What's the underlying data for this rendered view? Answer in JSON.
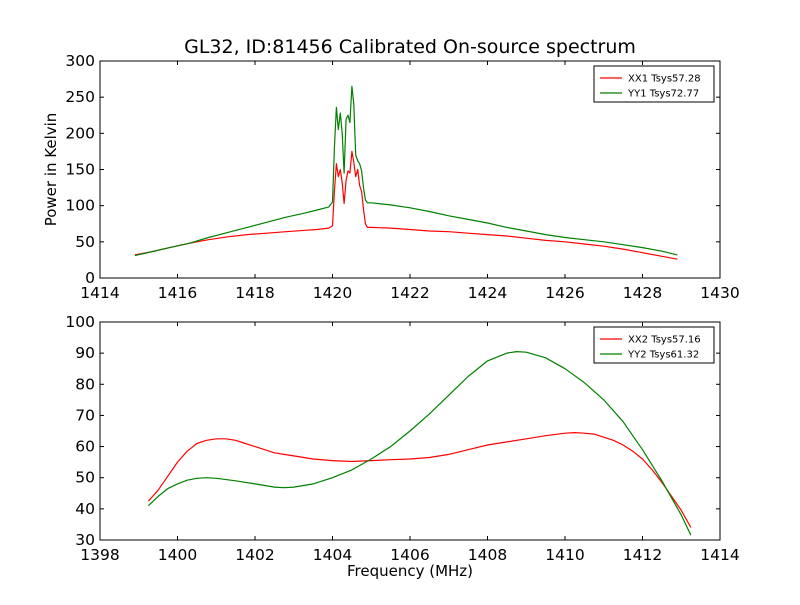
{
  "figure": {
    "title": "GL32, ID:81456 Calibrated On-source spectrum"
  },
  "chart_data": [
    {
      "type": "line",
      "title": "GL32, ID:81456 Calibrated On-source spectrum",
      "xlabel": "",
      "ylabel": "Power in Kelvin",
      "xlim": [
        1414,
        1430
      ],
      "ylim": [
        0,
        300
      ],
      "xticks": [
        "1414",
        "1416",
        "1418",
        "1420",
        "1422",
        "1424",
        "1426",
        "1428",
        "1430"
      ],
      "yticks": [
        "0",
        "50",
        "100",
        "150",
        "200",
        "250",
        "300"
      ],
      "legend_position": "top-right",
      "grid": false,
      "series": [
        {
          "name": "XX1 Tsys57.28",
          "color": "#ff0000",
          "points": [
            [
              1414.9,
              32
            ],
            [
              1415.3,
              36
            ],
            [
              1415.8,
              42
            ],
            [
              1416.3,
              48
            ],
            [
              1416.8,
              53
            ],
            [
              1417.3,
              57
            ],
            [
              1417.8,
              60
            ],
            [
              1418.3,
              62
            ],
            [
              1418.8,
              64
            ],
            [
              1419.3,
              66
            ],
            [
              1419.6,
              67
            ],
            [
              1419.9,
              69
            ],
            [
              1420.0,
              72
            ],
            [
              1420.05,
              120
            ],
            [
              1420.1,
              158
            ],
            [
              1420.15,
              140
            ],
            [
              1420.2,
              150
            ],
            [
              1420.25,
              132
            ],
            [
              1420.3,
              103
            ],
            [
              1420.35,
              135
            ],
            [
              1420.4,
              148
            ],
            [
              1420.45,
              145
            ],
            [
              1420.5,
              175
            ],
            [
              1420.55,
              160
            ],
            [
              1420.6,
              140
            ],
            [
              1420.65,
              150
            ],
            [
              1420.7,
              128
            ],
            [
              1420.75,
              120
            ],
            [
              1420.8,
              95
            ],
            [
              1420.85,
              75
            ],
            [
              1420.9,
              70
            ],
            [
              1421.0,
              70
            ],
            [
              1421.5,
              69
            ],
            [
              1422.0,
              67
            ],
            [
              1422.5,
              65
            ],
            [
              1423.0,
              64
            ],
            [
              1423.5,
              62
            ],
            [
              1424.0,
              60
            ],
            [
              1424.5,
              58
            ],
            [
              1425.0,
              55
            ],
            [
              1425.5,
              52
            ],
            [
              1426.0,
              50
            ],
            [
              1426.5,
              47
            ],
            [
              1427.0,
              44
            ],
            [
              1427.5,
              40
            ],
            [
              1428.0,
              35
            ],
            [
              1428.5,
              30
            ],
            [
              1428.9,
              26
            ]
          ]
        },
        {
          "name": "YY1 Tsys72.77",
          "color": "#008000",
          "points": [
            [
              1414.9,
              31
            ],
            [
              1415.3,
              36
            ],
            [
              1415.8,
              42
            ],
            [
              1416.3,
              48
            ],
            [
              1416.8,
              56
            ],
            [
              1417.3,
              63
            ],
            [
              1417.8,
              70
            ],
            [
              1418.3,
              77
            ],
            [
              1418.8,
              84
            ],
            [
              1419.3,
              90
            ],
            [
              1419.6,
              94
            ],
            [
              1419.9,
              98
            ],
            [
              1420.0,
              105
            ],
            [
              1420.05,
              180
            ],
            [
              1420.1,
              236
            ],
            [
              1420.15,
              205
            ],
            [
              1420.2,
              228
            ],
            [
              1420.25,
              200
            ],
            [
              1420.3,
              145
            ],
            [
              1420.35,
              220
            ],
            [
              1420.4,
              225
            ],
            [
              1420.45,
              215
            ],
            [
              1420.5,
              265
            ],
            [
              1420.55,
              240
            ],
            [
              1420.6,
              170
            ],
            [
              1420.65,
              162
            ],
            [
              1420.7,
              158
            ],
            [
              1420.75,
              148
            ],
            [
              1420.8,
              125
            ],
            [
              1420.85,
              108
            ],
            [
              1420.9,
              104
            ],
            [
              1421.0,
              104
            ],
            [
              1421.5,
              101
            ],
            [
              1422.0,
              97
            ],
            [
              1422.5,
              92
            ],
            [
              1423.0,
              86
            ],
            [
              1423.5,
              81
            ],
            [
              1424.0,
              76
            ],
            [
              1424.5,
              70
            ],
            [
              1425.0,
              65
            ],
            [
              1425.5,
              60
            ],
            [
              1426.0,
              56
            ],
            [
              1426.5,
              53
            ],
            [
              1427.0,
              50
            ],
            [
              1427.5,
              46
            ],
            [
              1428.0,
              42
            ],
            [
              1428.5,
              37
            ],
            [
              1428.9,
              32
            ]
          ]
        }
      ]
    },
    {
      "type": "line",
      "title": "",
      "xlabel": "Frequency (MHz)",
      "ylabel": "",
      "xlim": [
        1398,
        1414
      ],
      "ylim": [
        30,
        100
      ],
      "xticks": [
        "1398",
        "1400",
        "1402",
        "1404",
        "1406",
        "1408",
        "1410",
        "1412",
        "1414"
      ],
      "yticks": [
        "30",
        "40",
        "50",
        "60",
        "70",
        "80",
        "90",
        "100"
      ],
      "legend_position": "top-right",
      "grid": false,
      "series": [
        {
          "name": "XX2 Tsys57.16",
          "color": "#ff0000",
          "points": [
            [
              1399.25,
              42.5
            ],
            [
              1399.5,
              46
            ],
            [
              1399.75,
              50.5
            ],
            [
              1400.0,
              55
            ],
            [
              1400.25,
              58.5
            ],
            [
              1400.5,
              61
            ],
            [
              1400.75,
              62
            ],
            [
              1401.0,
              62.5
            ],
            [
              1401.25,
              62.5
            ],
            [
              1401.5,
              62
            ],
            [
              1401.75,
              61
            ],
            [
              1402.0,
              60
            ],
            [
              1402.25,
              59
            ],
            [
              1402.5,
              58
            ],
            [
              1402.75,
              57.5
            ],
            [
              1403.0,
              57
            ],
            [
              1403.5,
              56
            ],
            [
              1404.0,
              55.5
            ],
            [
              1404.5,
              55.2
            ],
            [
              1405.0,
              55.5
            ],
            [
              1405.5,
              55.8
            ],
            [
              1406.0,
              56
            ],
            [
              1406.5,
              56.5
            ],
            [
              1407.0,
              57.5
            ],
            [
              1407.5,
              59
            ],
            [
              1408.0,
              60.5
            ],
            [
              1408.5,
              61.5
            ],
            [
              1409.0,
              62.5
            ],
            [
              1409.5,
              63.5
            ],
            [
              1410.0,
              64.3
            ],
            [
              1410.25,
              64.5
            ],
            [
              1410.5,
              64.3
            ],
            [
              1410.75,
              64
            ],
            [
              1411.0,
              63
            ],
            [
              1411.25,
              62
            ],
            [
              1411.5,
              60.5
            ],
            [
              1411.75,
              58.5
            ],
            [
              1412.0,
              56
            ],
            [
              1412.25,
              52.5
            ],
            [
              1412.5,
              48.5
            ],
            [
              1412.75,
              44
            ],
            [
              1413.0,
              39.5
            ],
            [
              1413.25,
              34
            ]
          ]
        },
        {
          "name": "YY2 Tsys61.32",
          "color": "#008000",
          "points": [
            [
              1399.25,
              41
            ],
            [
              1399.5,
              44
            ],
            [
              1399.75,
              46.5
            ],
            [
              1400.0,
              48
            ],
            [
              1400.25,
              49.2
            ],
            [
              1400.5,
              49.8
            ],
            [
              1400.75,
              50
            ],
            [
              1401.0,
              49.8
            ],
            [
              1401.5,
              49
            ],
            [
              1402.0,
              48
            ],
            [
              1402.5,
              47
            ],
            [
              1402.75,
              46.8
            ],
            [
              1403.0,
              47
            ],
            [
              1403.5,
              48
            ],
            [
              1404.0,
              50
            ],
            [
              1404.5,
              52.5
            ],
            [
              1405.0,
              56
            ],
            [
              1405.5,
              60
            ],
            [
              1406.0,
              65
            ],
            [
              1406.5,
              70.5
            ],
            [
              1407.0,
              76.5
            ],
            [
              1407.5,
              82.5
            ],
            [
              1408.0,
              87.5
            ],
            [
              1408.5,
              90
            ],
            [
              1408.75,
              90.5
            ],
            [
              1409.0,
              90.3
            ],
            [
              1409.5,
              88.5
            ],
            [
              1410.0,
              85
            ],
            [
              1410.5,
              80.5
            ],
            [
              1411.0,
              75
            ],
            [
              1411.5,
              68
            ],
            [
              1412.0,
              59
            ],
            [
              1412.5,
              49
            ],
            [
              1413.0,
              38
            ],
            [
              1413.25,
              31.5
            ]
          ]
        }
      ]
    }
  ]
}
